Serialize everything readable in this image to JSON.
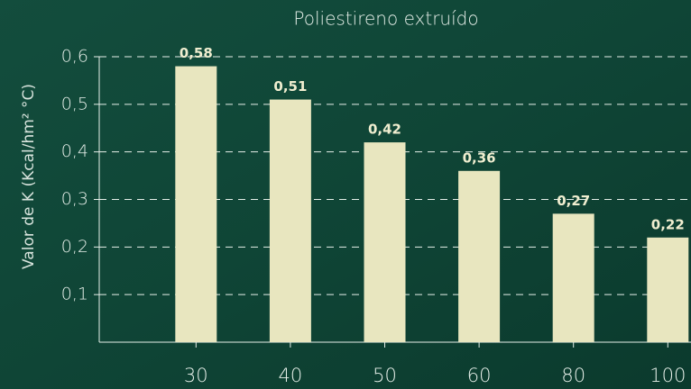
{
  "chart_data": {
    "type": "bar",
    "title": "Poliestireno extruído",
    "ylabel": "Valor de K (Kcal/hm² °C)",
    "categories": [
      "30",
      "40",
      "50",
      "60",
      "80",
      "100"
    ],
    "values": [
      0.58,
      0.51,
      0.42,
      0.36,
      0.27,
      0.22
    ],
    "value_labels": [
      "0,58",
      "0,51",
      "0,42",
      "0,36",
      "0,27",
      "0,22"
    ],
    "color": "#e8e6bf",
    "ylim": [
      0,
      0.6
    ],
    "yticks": [
      {
        "value": 0.1,
        "label": "0,1"
      },
      {
        "value": 0.2,
        "label": "0,2"
      },
      {
        "value": 0.3,
        "label": "0,3"
      },
      {
        "value": 0.4,
        "label": "0,4"
      },
      {
        "value": 0.5,
        "label": "0,5"
      },
      {
        "value": 0.6,
        "label": "0,6"
      }
    ],
    "grid": true
  }
}
